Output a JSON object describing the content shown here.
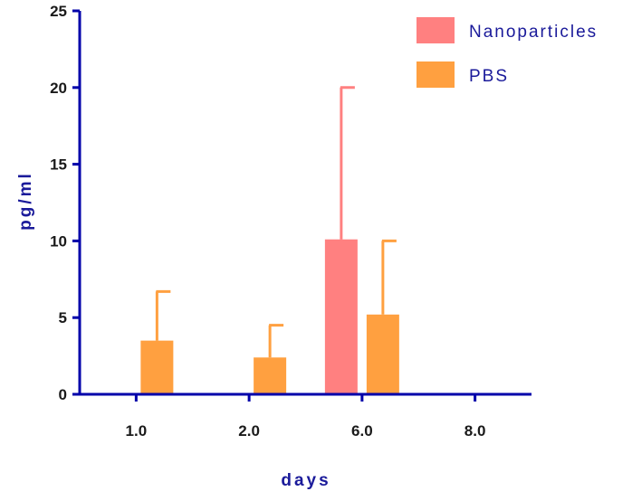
{
  "chart_data": {
    "type": "bar",
    "categories": [
      "1.0",
      "2.0",
      "6.0",
      "8.0"
    ],
    "series": [
      {
        "name": "Nanoparticles",
        "color": "#ff8080",
        "values": [
          0,
          0,
          10.1,
          0
        ],
        "errors": [
          0,
          0,
          9.9,
          0
        ]
      },
      {
        "name": "PBS",
        "color": "#ffa040",
        "values": [
          3.5,
          2.4,
          5.2,
          0
        ],
        "errors": [
          3.2,
          2.1,
          4.8,
          0
        ]
      }
    ],
    "title": "",
    "xlabel": "days",
    "ylabel": "pg/ml",
    "ylim": [
      0,
      25
    ],
    "yticks": [
      "0",
      "5",
      "10",
      "15",
      "20",
      "25"
    ],
    "grid": false,
    "legend_position": "top-right",
    "axis_color": "#0000aa"
  }
}
